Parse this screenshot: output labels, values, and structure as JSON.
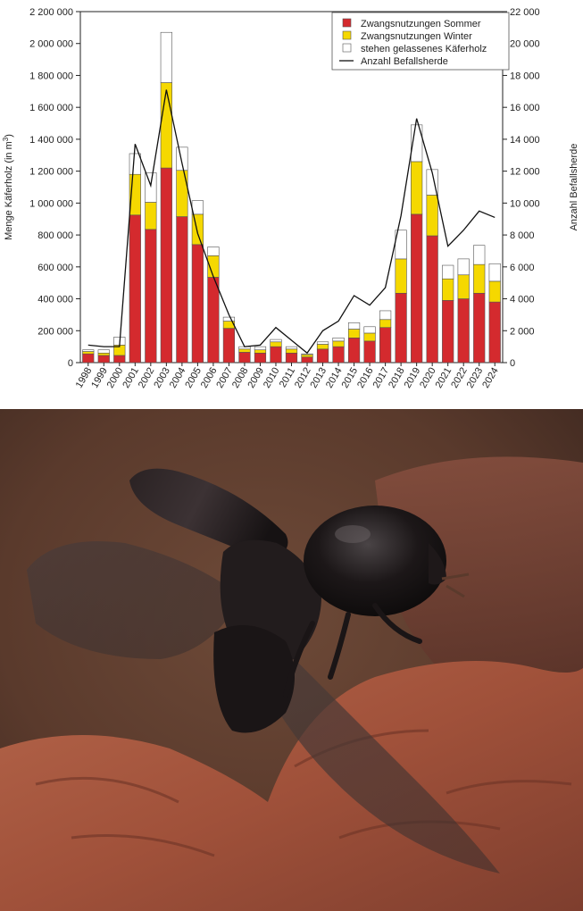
{
  "chart_data": {
    "type": "bar",
    "stacked": true,
    "categories": [
      "1998",
      "1999",
      "2000",
      "2001",
      "2002",
      "2003",
      "2004",
      "2005",
      "2006",
      "2007",
      "2008",
      "2009",
      "2010",
      "2011",
      "2012",
      "2013",
      "2014",
      "2015",
      "2016",
      "2017",
      "2018",
      "2019",
      "2020",
      "2021",
      "2022",
      "2023",
      "2024"
    ],
    "series": [
      {
        "name": "Zwangsnutzungen Sommer",
        "color": "#d42a2e",
        "axis": "left",
        "values": [
          55000,
          45000,
          45000,
          925000,
          835000,
          1220000,
          915000,
          740000,
          535000,
          215000,
          65000,
          60000,
          100000,
          60000,
          35000,
          85000,
          100000,
          155000,
          135000,
          220000,
          435000,
          930000,
          795000,
          390000,
          400000,
          435000,
          380000
        ]
      },
      {
        "name": "Zwangsnutzungen Winter",
        "color": "#f5d800",
        "axis": "left",
        "values": [
          15000,
          15000,
          65000,
          255000,
          170000,
          535000,
          290000,
          190000,
          135000,
          45000,
          20000,
          20000,
          30000,
          25000,
          15000,
          30000,
          35000,
          55000,
          50000,
          50000,
          215000,
          330000,
          255000,
          135000,
          150000,
          180000,
          130000
        ]
      },
      {
        "name": "stehen gelassenes Käferholz",
        "color": "#ffffff",
        "axis": "left",
        "values": [
          10000,
          20000,
          50000,
          130000,
          185000,
          315000,
          145000,
          85000,
          55000,
          25000,
          15000,
          20000,
          15000,
          15000,
          5000,
          15000,
          20000,
          40000,
          40000,
          55000,
          180000,
          230000,
          160000,
          85000,
          100000,
          120000,
          110000
        ]
      },
      {
        "name": "Anzahl Befallsherde",
        "type": "line",
        "color": "#111111",
        "axis": "right",
        "values": [
          1100,
          1000,
          1000,
          13700,
          11100,
          17100,
          12500,
          8100,
          5400,
          3000,
          1000,
          1100,
          2200,
          1400,
          600,
          2000,
          2600,
          4200,
          3600,
          4700,
          9200,
          15300,
          11900,
          7300,
          8300,
          9500,
          9100
        ]
      }
    ],
    "ylabel": "Menge Käferholz (in m³)",
    "ylabel_main": "Menge Käferholz (in m",
    "ylabel_sup": "3",
    "ylabel_end": ")",
    "y2label": "Anzahl Befallsherde",
    "ylim": [
      0,
      2200000
    ],
    "y2lim": [
      0,
      22000
    ],
    "yticks": [
      0,
      200000,
      400000,
      600000,
      800000,
      1000000,
      1200000,
      1400000,
      1600000,
      1800000,
      2000000,
      2200000
    ],
    "ytick_labels": [
      "0",
      "200 000",
      "400 000",
      "600 000",
      "800 000",
      "1 000 000",
      "1 200 000",
      "1 400 000",
      "1 600 000",
      "1 800 000",
      "2 000 000",
      "2 200 000"
    ],
    "y2ticks": [
      0,
      2000,
      4000,
      6000,
      8000,
      10000,
      12000,
      14000,
      16000,
      18000,
      20000,
      22000
    ],
    "y2tick_labels": [
      "0",
      "2 000",
      "4 000",
      "6 000",
      "8 000",
      "10 000",
      "12 000",
      "14 000",
      "16 000",
      "18 000",
      "20 000",
      "22 000"
    ],
    "legend_position": "top-right",
    "grid": false
  },
  "photo": {
    "subject": "bark-beetle-icon",
    "colors": {
      "bark": "#a0513a",
      "background": "#5a3a2c",
      "beetle": "#151213",
      "wing": "#3a3030"
    }
  }
}
